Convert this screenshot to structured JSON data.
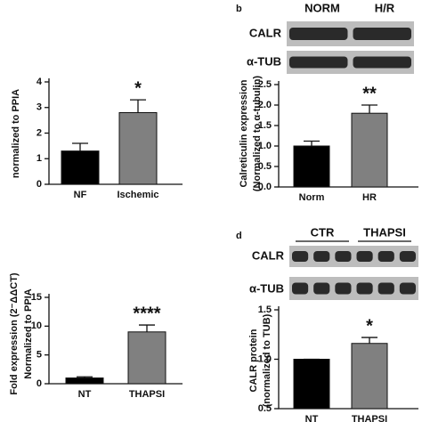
{
  "chart_data": [
    {
      "type": "bar",
      "y_label": [
        "normalized to PPIA"
      ],
      "categories": [
        "NF",
        "Ischemic"
      ],
      "values": [
        1.3,
        2.8
      ],
      "errors": [
        0.3,
        0.5
      ],
      "colors": [
        "#000000",
        "#808080"
      ],
      "ylim": [
        0,
        4
      ],
      "yticks": [
        0,
        1,
        2,
        3,
        4
      ],
      "annotation": "*"
    },
    {
      "type": "bar",
      "panel_label": "b",
      "blot": {
        "lanes": [
          "NORM",
          "H/R"
        ],
        "rows": [
          "CALR",
          "α-TUB"
        ]
      },
      "y_label": [
        "Calreticulin expression",
        "(Normalized to α-tubulin)"
      ],
      "categories": [
        "Norm",
        "HR"
      ],
      "values": [
        1.0,
        1.8
      ],
      "errors": [
        0.12,
        0.2
      ],
      "colors": [
        "#000000",
        "#808080"
      ],
      "ylim": [
        0,
        2.5
      ],
      "yticks": [
        {
          "value": 0,
          "label": "0.0"
        },
        0.5,
        {
          "value": 1,
          "label": "1.0"
        },
        1.5,
        {
          "value": 2,
          "label": "2.0"
        },
        2.5
      ],
      "annotation": "**"
    },
    {
      "type": "bar",
      "y_label": [
        "Fold expression (2⁻ΔΔCT)",
        "Normalized to PPIA"
      ],
      "categories": [
        "NT",
        "THAPSI"
      ],
      "values": [
        1.0,
        9.0
      ],
      "errors": [
        0.2,
        1.2
      ],
      "colors": [
        "#000000",
        "#808080"
      ],
      "ylim": [
        0,
        15
      ],
      "yticks": [
        0,
        5,
        10,
        15
      ],
      "annotation": "****"
    },
    {
      "type": "bar",
      "panel_label": "d",
      "blot": {
        "lanes": [
          "CTR",
          "THAPSI"
        ],
        "rows": [
          "CALR",
          "α-TUB"
        ]
      },
      "y_label": [
        "CALR protein",
        "(normalized to TUB)"
      ],
      "categories": [
        "NT",
        "THAPSI"
      ],
      "values": [
        1.0,
        1.16
      ],
      "errors": [
        0,
        0.06
      ],
      "colors": [
        "#000000",
        "#808080"
      ],
      "ylim": [
        0.5,
        1.5
      ],
      "yticks": [
        0.5,
        {
          "value": 1,
          "label": "1.0"
        },
        1.5
      ],
      "annotation": "*"
    }
  ]
}
